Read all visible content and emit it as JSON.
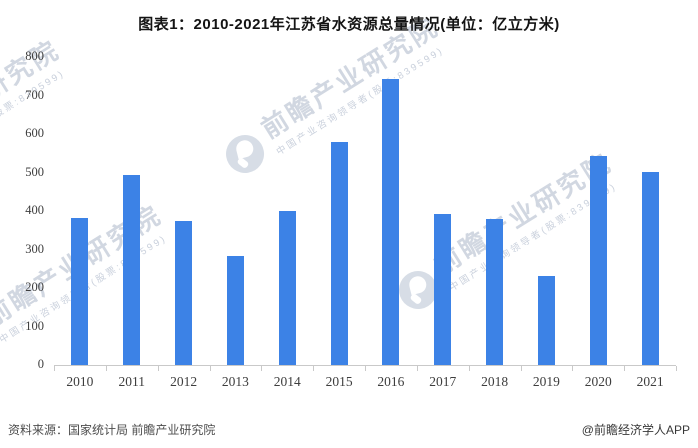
{
  "title": "图表1：2010-2021年江苏省水资源总量情况(单位：亿立方米)",
  "footer": {
    "source": "资料来源：国家统计局 前瞻产业研究院",
    "credit": "@前瞻经济学人APP"
  },
  "watermark": {
    "brand": "前瞻产业研究院",
    "tagline": "中国产业咨询领导者(股票:839599)",
    "logo_icon": "qianzhan-bird-circle-logo"
  },
  "colors": {
    "bar": "#3C82E6",
    "axis": "#c9c9c9",
    "tick_text": "#3d3d3d",
    "watermark": "#b2bccd"
  },
  "chart_data": {
    "type": "bar",
    "title": "图表1：2010-2021年江苏省水资源总量情况(单位：亿立方米)",
    "categories": [
      "2010",
      "2011",
      "2012",
      "2013",
      "2014",
      "2015",
      "2016",
      "2017",
      "2018",
      "2019",
      "2020",
      "2021"
    ],
    "values": [
      383,
      494,
      373,
      282,
      400,
      580,
      742,
      393,
      378,
      231,
      544,
      501
    ],
    "xlabel": "",
    "ylabel": "亿立方米",
    "ylim": [
      0,
      800
    ],
    "ytick_step": 100,
    "grid": false,
    "legend": null
  }
}
